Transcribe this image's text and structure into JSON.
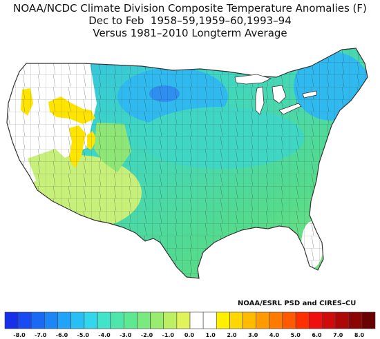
{
  "title": {
    "line1": "NOAA/NCDC Climate Division Composite Temperature Anomalies (F)",
    "line2": "Dec to Feb  1958–59,1959–60,1993–94",
    "line3": "Versus 1981–2010 Longterm Average"
  },
  "credit": "NOAA/ESRL PSD and CIRES–CU",
  "colors": {
    "outline": "#333333",
    "no_change": "#ffffff",
    "warm_1": "#ffe400",
    "warm_0": "#fff9a0",
    "cool_1": "#c7f07a",
    "cool_2": "#8ee677",
    "cool_3": "#55db8c",
    "cool_4": "#3fd6c4",
    "cool_5": "#2fb9ef",
    "cool_6": "#2f8ef0",
    "cool_7": "#2a5fe0"
  },
  "legend": {
    "tick_labels": [
      "-8.0",
      "-7.0",
      "-6.0",
      "-5.0",
      "-4.0",
      "-3.0",
      "-2.0",
      "-1.0",
      "0.0",
      "1.0",
      "2.0",
      "3.0",
      "4.0",
      "5.0",
      "6.0",
      "7.0",
      "8.0"
    ],
    "swatches": [
      "#1530e8",
      "#1a4bf2",
      "#1a69f5",
      "#1d86f7",
      "#22a3f7",
      "#28bff4",
      "#33d6ea",
      "#41e3cb",
      "#4fe6ac",
      "#5fe892",
      "#78ea80",
      "#98ec70",
      "#bdef62",
      "#e1f35a",
      "#ffffff",
      "#ffffff",
      "#fff000",
      "#ffd700",
      "#ffbb00",
      "#ff9b00",
      "#ff7a00",
      "#ff5a00",
      "#ff2f00",
      "#ef0f0f",
      "#cf0b0b",
      "#ad0808",
      "#8c0505",
      "#6b0202"
    ]
  }
}
